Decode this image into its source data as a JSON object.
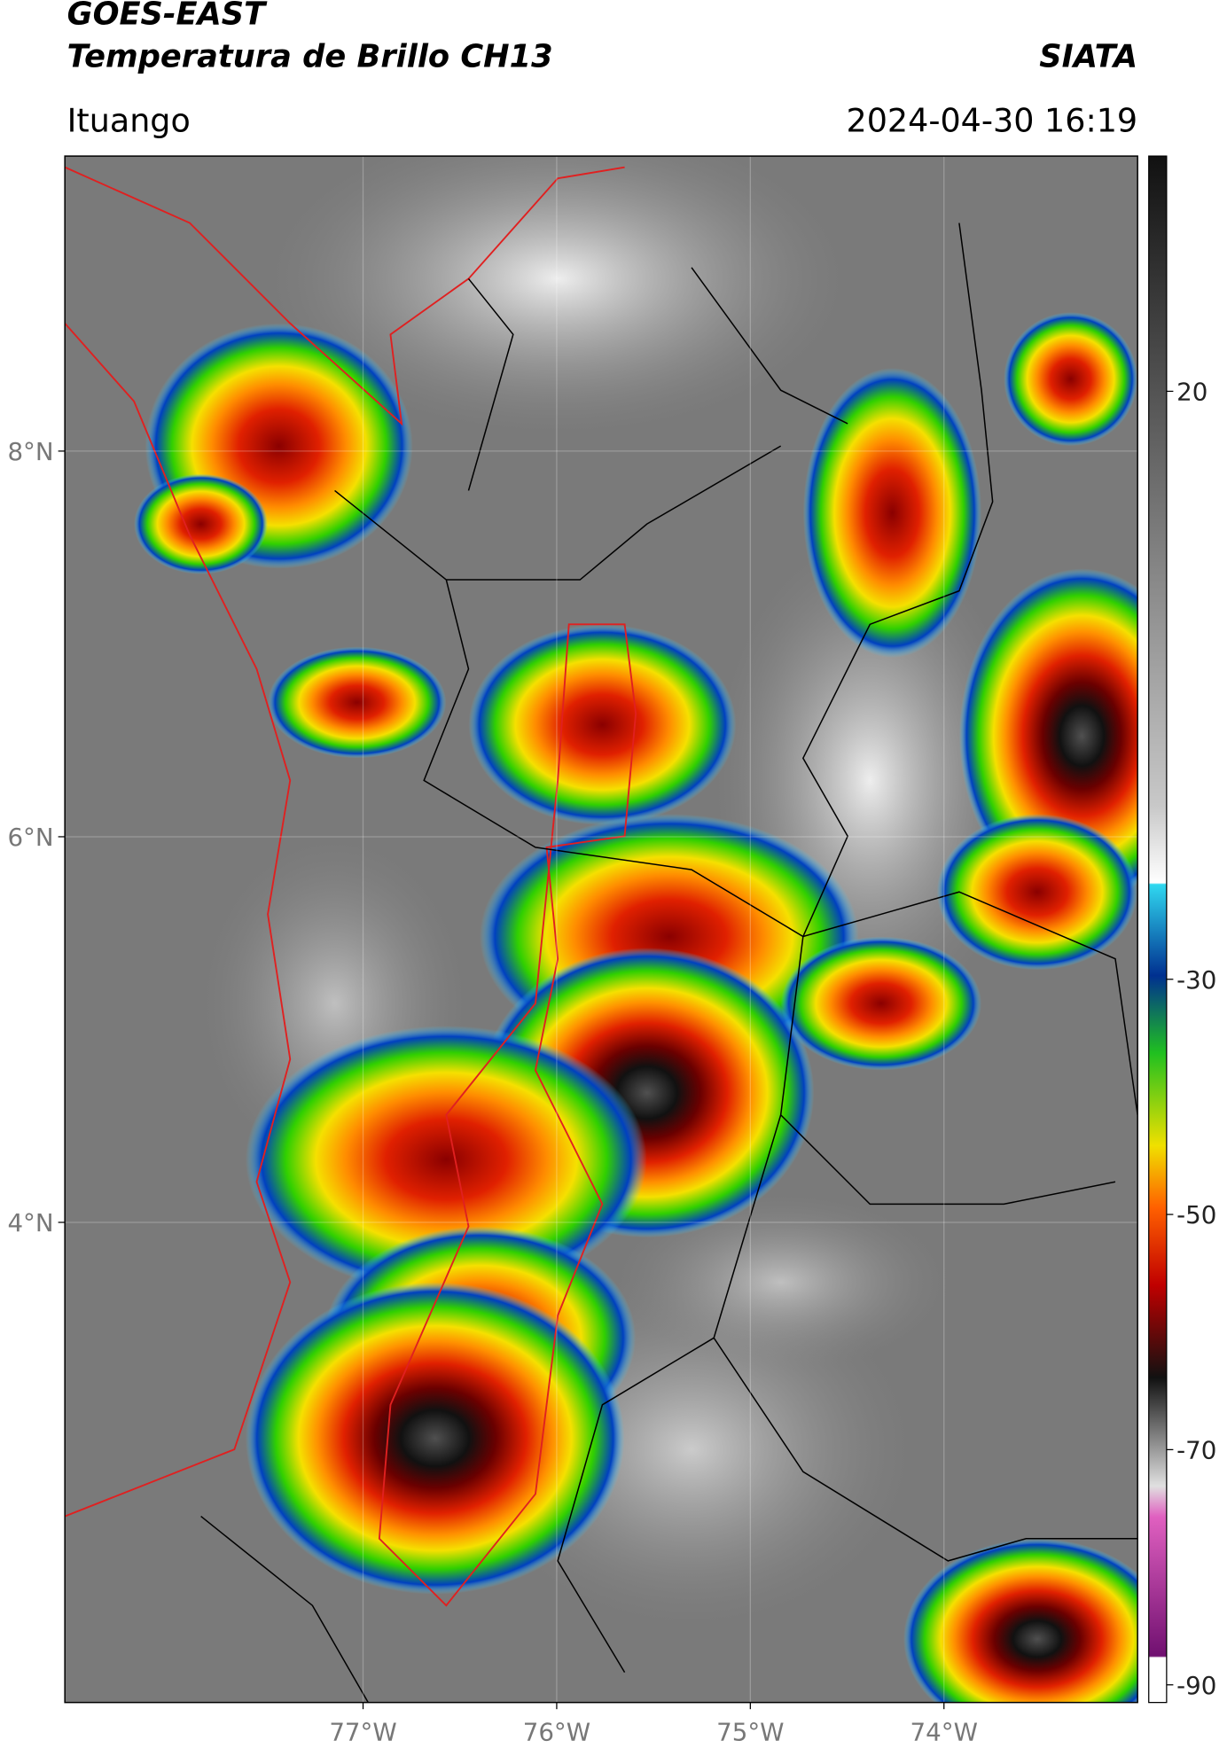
{
  "header": {
    "title": "GOES-EAST",
    "subtitle": "Temperatura de Brillo CH13",
    "source": "SIATA",
    "location": "Ituango",
    "datetime": "2024-04-30 16:19"
  },
  "map": {
    "latlim": [
      1.51,
      9.53
    ],
    "lonlim": [
      -78.54,
      -73.0
    ],
    "latticks": [
      {
        "value": 8,
        "label": "8°N"
      },
      {
        "value": 6,
        "label": "6°N"
      },
      {
        "value": 4,
        "label": "4°N"
      }
    ],
    "lonticks": [
      {
        "value": -77,
        "label": "77°W"
      },
      {
        "value": -76,
        "label": "76°W"
      },
      {
        "value": -75,
        "label": "75°W"
      },
      {
        "value": -74,
        "label": "74°W"
      }
    ],
    "grid": true
  },
  "colorbar": {
    "lim": [
      -91.5,
      40
    ],
    "ticks": [
      20,
      -30,
      -50,
      -70,
      -90
    ]
  }
}
